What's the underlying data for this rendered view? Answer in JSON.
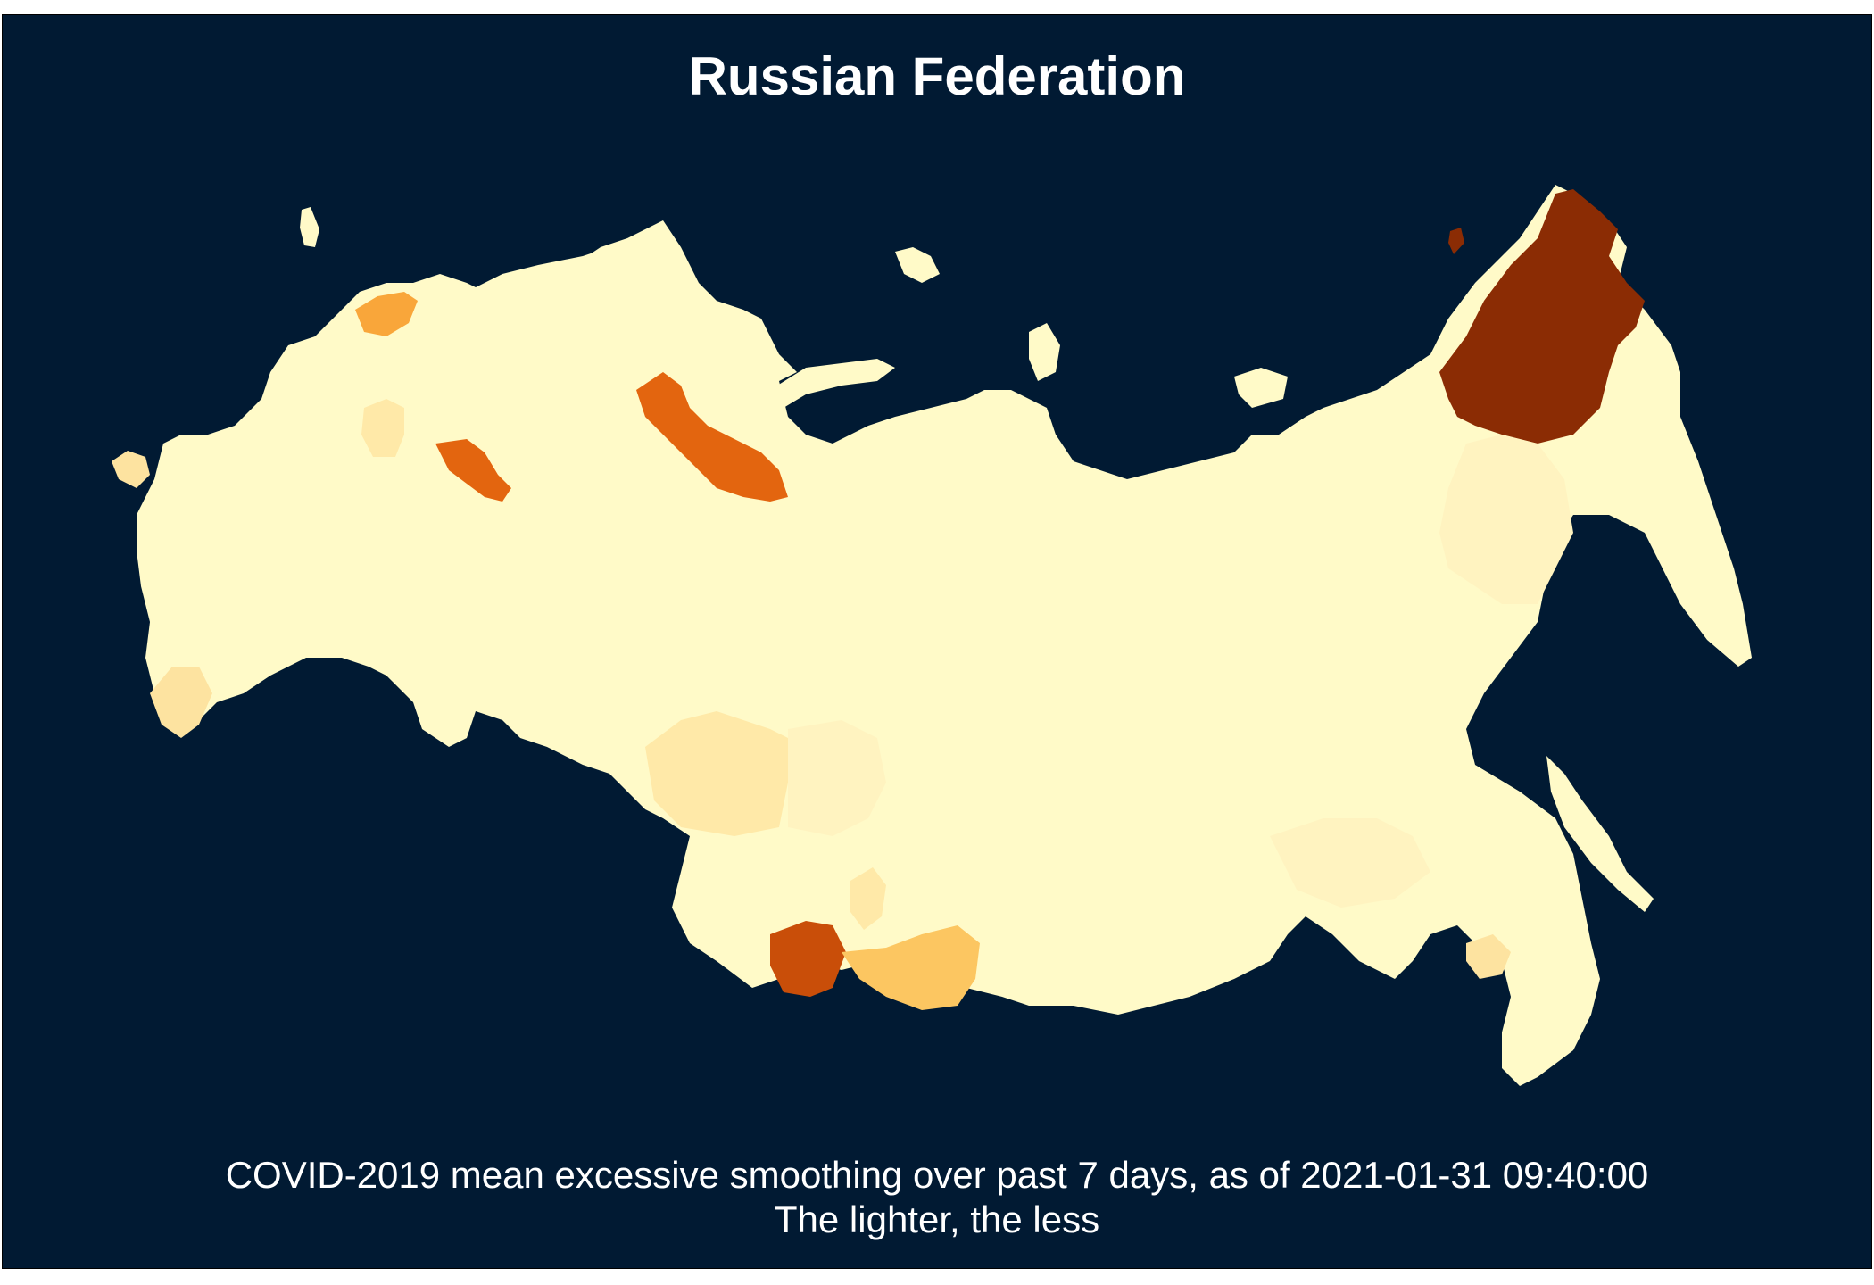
{
  "title": "Russian Federation",
  "caption_line1": "COVID-2019 mean excessive smoothing over past 7 days, as of 2021-01-31 09:40:00",
  "caption_line2": "The lighter, the less",
  "colors": {
    "background": "#011a33",
    "base": "#fffac8",
    "light": "#fff3c0",
    "pale": "#ffe9a8",
    "tan": "#fde3a0",
    "mid": "#fcc661",
    "orange": "#f9a63a",
    "dark_orange": "#e3650f",
    "burnt": "#c94e09",
    "brown": "#8b2c04"
  },
  "legend_scale": "lighter = less"
}
